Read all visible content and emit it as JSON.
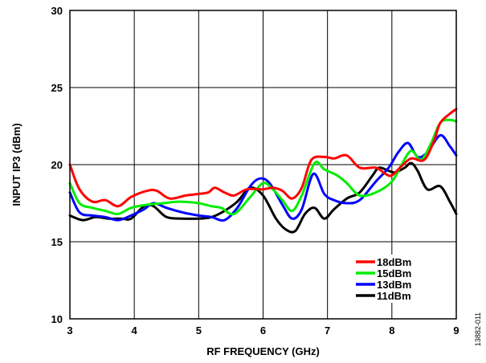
{
  "figure_id": "13882-011",
  "chart_data": {
    "type": "line",
    "title": "",
    "xlabel": "RF FREQUENCY (GHz)",
    "ylabel": "INPUT IP3 (dBm)",
    "xlim": [
      3,
      9
    ],
    "ylim": [
      10,
      30
    ],
    "xticks": [
      3,
      4,
      5,
      6,
      7,
      8,
      9
    ],
    "yticks": [
      10,
      15,
      20,
      25,
      30
    ],
    "grid": true,
    "legend_position": "bottom-right",
    "series": [
      {
        "name": "18dBm",
        "color": "#ff0000",
        "points": [
          [
            3.0,
            20.0
          ],
          [
            3.15,
            18.4
          ],
          [
            3.35,
            17.6
          ],
          [
            3.55,
            17.7
          ],
          [
            3.75,
            17.3
          ],
          [
            3.95,
            17.9
          ],
          [
            4.2,
            18.3
          ],
          [
            4.35,
            18.3
          ],
          [
            4.55,
            17.8
          ],
          [
            4.8,
            18.0
          ],
          [
            5.0,
            18.1
          ],
          [
            5.15,
            18.2
          ],
          [
            5.25,
            18.5
          ],
          [
            5.4,
            18.2
          ],
          [
            5.55,
            18.0
          ],
          [
            5.75,
            18.4
          ],
          [
            6.0,
            18.4
          ],
          [
            6.15,
            18.5
          ],
          [
            6.3,
            18.3
          ],
          [
            6.45,
            17.8
          ],
          [
            6.6,
            18.5
          ],
          [
            6.75,
            20.3
          ],
          [
            6.95,
            20.5
          ],
          [
            7.1,
            20.4
          ],
          [
            7.3,
            20.6
          ],
          [
            7.5,
            19.8
          ],
          [
            7.75,
            19.8
          ],
          [
            7.9,
            19.4
          ],
          [
            8.0,
            19.3
          ],
          [
            8.15,
            19.9
          ],
          [
            8.3,
            20.4
          ],
          [
            8.5,
            20.3
          ],
          [
            8.65,
            21.5
          ],
          [
            8.75,
            22.7
          ],
          [
            8.9,
            23.3
          ],
          [
            9.0,
            23.6
          ]
        ]
      },
      {
        "name": "15dBm",
        "color": "#00ee00",
        "points": [
          [
            3.0,
            18.8
          ],
          [
            3.15,
            17.5
          ],
          [
            3.35,
            17.2
          ],
          [
            3.55,
            17.0
          ],
          [
            3.75,
            16.8
          ],
          [
            3.95,
            17.2
          ],
          [
            4.2,
            17.4
          ],
          [
            4.45,
            17.5
          ],
          [
            4.7,
            17.6
          ],
          [
            5.0,
            17.5
          ],
          [
            5.2,
            17.3
          ],
          [
            5.35,
            17.2
          ],
          [
            5.55,
            16.8
          ],
          [
            5.8,
            17.9
          ],
          [
            6.0,
            18.8
          ],
          [
            6.15,
            18.4
          ],
          [
            6.3,
            17.7
          ],
          [
            6.45,
            17.0
          ],
          [
            6.6,
            18.0
          ],
          [
            6.8,
            20.1
          ],
          [
            6.95,
            19.7
          ],
          [
            7.15,
            19.3
          ],
          [
            7.3,
            18.8
          ],
          [
            7.5,
            18.0
          ],
          [
            7.75,
            18.2
          ],
          [
            8.0,
            18.9
          ],
          [
            8.15,
            20.0
          ],
          [
            8.3,
            20.9
          ],
          [
            8.45,
            20.3
          ],
          [
            8.6,
            21.3
          ],
          [
            8.75,
            22.7
          ],
          [
            8.9,
            22.9
          ],
          [
            9.0,
            22.8
          ]
        ]
      },
      {
        "name": "13dBm",
        "color": "#0000ff",
        "points": [
          [
            3.0,
            18.2
          ],
          [
            3.15,
            16.9
          ],
          [
            3.35,
            16.7
          ],
          [
            3.55,
            16.6
          ],
          [
            3.75,
            16.4
          ],
          [
            3.95,
            16.7
          ],
          [
            4.15,
            17.1
          ],
          [
            4.3,
            17.5
          ],
          [
            4.5,
            17.2
          ],
          [
            4.75,
            16.9
          ],
          [
            5.0,
            16.7
          ],
          [
            5.2,
            16.6
          ],
          [
            5.4,
            16.4
          ],
          [
            5.6,
            17.2
          ],
          [
            5.8,
            18.6
          ],
          [
            5.95,
            19.1
          ],
          [
            6.1,
            18.8
          ],
          [
            6.3,
            17.4
          ],
          [
            6.45,
            16.5
          ],
          [
            6.6,
            17.1
          ],
          [
            6.78,
            19.4
          ],
          [
            6.95,
            18.1
          ],
          [
            7.1,
            17.7
          ],
          [
            7.3,
            17.5
          ],
          [
            7.5,
            17.7
          ],
          [
            7.75,
            18.9
          ],
          [
            7.95,
            19.8
          ],
          [
            8.1,
            20.8
          ],
          [
            8.25,
            21.4
          ],
          [
            8.4,
            20.5
          ],
          [
            8.55,
            20.8
          ],
          [
            8.75,
            21.9
          ],
          [
            8.9,
            21.2
          ],
          [
            9.0,
            20.6
          ]
        ]
      },
      {
        "name": "11dBm",
        "color": "#000000",
        "points": [
          [
            3.0,
            16.7
          ],
          [
            3.2,
            16.4
          ],
          [
            3.4,
            16.6
          ],
          [
            3.6,
            16.5
          ],
          [
            3.8,
            16.5
          ],
          [
            3.95,
            16.5
          ],
          [
            4.15,
            17.3
          ],
          [
            4.3,
            17.3
          ],
          [
            4.5,
            16.6
          ],
          [
            4.75,
            16.5
          ],
          [
            5.0,
            16.5
          ],
          [
            5.2,
            16.6
          ],
          [
            5.4,
            17.0
          ],
          [
            5.6,
            17.6
          ],
          [
            5.8,
            18.5
          ],
          [
            6.0,
            18.0
          ],
          [
            6.2,
            16.5
          ],
          [
            6.35,
            15.8
          ],
          [
            6.5,
            15.7
          ],
          [
            6.65,
            16.8
          ],
          [
            6.8,
            17.2
          ],
          [
            6.95,
            16.5
          ],
          [
            7.1,
            17.1
          ],
          [
            7.3,
            17.8
          ],
          [
            7.5,
            18.2
          ],
          [
            7.7,
            19.3
          ],
          [
            7.8,
            19.8
          ],
          [
            7.95,
            19.6
          ],
          [
            8.05,
            19.5
          ],
          [
            8.2,
            19.8
          ],
          [
            8.3,
            20.1
          ],
          [
            8.4,
            19.6
          ],
          [
            8.55,
            18.4
          ],
          [
            8.75,
            18.6
          ],
          [
            8.9,
            17.6
          ],
          [
            9.0,
            16.8
          ]
        ]
      }
    ]
  }
}
